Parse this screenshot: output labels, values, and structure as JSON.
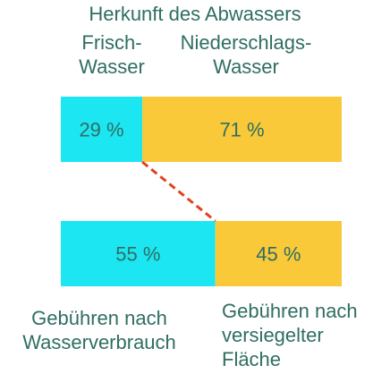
{
  "title": "Herkunft des Abwassers",
  "colors": {
    "text": "#2f6e62",
    "cyan": "#1ce6f2",
    "yellow": "#f9c93a",
    "connector": "#e6401e"
  },
  "chart_data": {
    "type": "bar",
    "orientation": "horizontal",
    "stacked": true,
    "normalized": true,
    "title": "Herkunft des Abwassers",
    "top_bar": {
      "segments": [
        {
          "label": "Frisch-Wasser",
          "value": 29,
          "display": "29 %",
          "color": "#1ce6f2"
        },
        {
          "label": "Niederschlags-Wasser",
          "value": 71,
          "display": "71 %",
          "color": "#f9c93a"
        }
      ]
    },
    "bottom_bar": {
      "segments": [
        {
          "label": "Gebühren nach Wasserverbrauch",
          "value": 55,
          "display": "55 %",
          "color": "#1ce6f2"
        },
        {
          "label": "Gebühren nach versiegelter Fläche",
          "value": 45,
          "display": "45 %",
          "color": "#f9c93a"
        }
      ]
    },
    "connector": {
      "style": "dashed",
      "from": "top_bar boundary",
      "to": "bottom_bar boundary"
    }
  },
  "labels": {
    "top_left": [
      "Frisch-",
      "Wasser"
    ],
    "top_right": [
      "Niederschlags-",
      "Wasser"
    ],
    "bottom_left": [
      "Gebühren nach",
      "Wasserverbrauch"
    ],
    "bottom_right": [
      "Gebühren nach",
      "versiegelter",
      "Fläche"
    ]
  }
}
